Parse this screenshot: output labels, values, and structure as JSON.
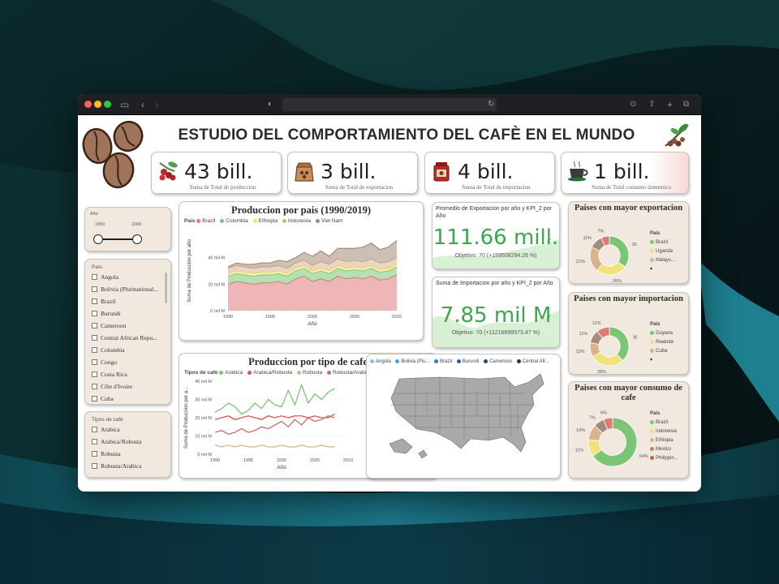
{
  "dashboard": {
    "title": "ESTUDIO DEL COMPORTAMIENTO DEL CAFÈ EN EL MUNDO"
  },
  "kpis": [
    {
      "value": "43 bill.",
      "label": "Suma de Total de produccion",
      "icon": "coffee-cherries-icon"
    },
    {
      "value": "3 bill.",
      "label": "Suma de Total de exportacion",
      "icon": "coffee-sack-icon"
    },
    {
      "value": "4 bill.",
      "label": "Suma de Total de importacion",
      "icon": "coffee-jar-icon"
    },
    {
      "value": "1 bill.",
      "label": "Suma de Total consumo domestico",
      "icon": "coffee-cup-icon"
    }
  ],
  "year_slicer": {
    "label": "Año",
    "from": "1990",
    "to": "2008"
  },
  "country_slicer": {
    "label": "País",
    "items": [
      "Angola",
      "Bolivia (Plurinational...",
      "Brazil",
      "Burundi",
      "Cameroon",
      "Central African Repu...",
      "Colombia",
      "Congo",
      "Costa Rica",
      "Côte d'Ivoire",
      "Cuba"
    ]
  },
  "type_slicer": {
    "label": "Tipos de cafe",
    "items": [
      "Arabica",
      "Arabica/Robusta",
      "Robusta",
      "Robusta/Arabica"
    ]
  },
  "colors": {
    "brazil": "#e07a7a",
    "colombia": "#7cc576",
    "ethiopia": "#f2e27a",
    "indonesia": "#d9b38c",
    "vietnam": "#a68a7a",
    "arabica": "#7cc576",
    "arabica_robusta": "#d9534f",
    "robusta": "#d9b38c",
    "robusta_arabica": "#c97070",
    "kpi_green": "#3aa84a"
  },
  "kpi_export": {
    "title": "Promedio de Exportacion por año y KPI_2 por Año",
    "value": "111.66 mill.",
    "goal": "Objetivo: 70 (+159508294.26 %)"
  },
  "kpi_import": {
    "title": "Suma de Importacion por año y KPI_2 por Año",
    "value": "7.85 mil M",
    "goal": "Objetivo: 70 (+11216699573.47 %)"
  },
  "map_legend": [
    "Angola",
    "Bolivia (Plu...",
    "Brazil",
    "Burundi",
    "Cameroon",
    "Central Afr..."
  ],
  "donuts": [
    {
      "title": "Paises con mayor exportacion",
      "legend_title": "País",
      "legend": [
        "Brazil",
        "Uganda",
        "Malays..."
      ],
      "labels": [
        "7%",
        "11%",
        "21%",
        "26%",
        "35%"
      ]
    },
    {
      "title": "Paises con mayor importacion",
      "legend_title": "País",
      "legend": [
        "Guyana",
        "Rwanda",
        "Cuba"
      ],
      "labels": [
        "11%",
        "11%",
        "12%",
        "28%",
        "38%"
      ]
    },
    {
      "title": "Paises con mayor consumo de cafe",
      "legend_title": "País",
      "legend": [
        "Brazil",
        "Indonesia",
        "Ethiopia",
        "Mexico",
        "Philippin..."
      ],
      "labels": [
        "6%",
        "7%",
        "10%",
        "11%",
        "64%"
      ]
    }
  ],
  "chart_data": [
    {
      "type": "area",
      "title": "Produccion por pais (1990/2019)",
      "legend_title": "País",
      "xlabel": "Año",
      "ylabel": "Suma de Produccion por año",
      "xlim": [
        1990,
        2010
      ],
      "ylim": [
        0,
        60
      ],
      "x_ticks": [
        "1990",
        "1995",
        "2000",
        "2005",
        "2010"
      ],
      "y_ticks": [
        "0 mil M",
        "20 mil M",
        "40 mil M"
      ],
      "x": [
        1990,
        1991,
        1992,
        1993,
        1994,
        1995,
        1996,
        1997,
        1998,
        1999,
        2000,
        2001,
        2002,
        2003,
        2004,
        2005,
        2006,
        2007,
        2008,
        2009,
        2010
      ],
      "series": [
        {
          "name": "Brazil",
          "values": [
            20,
            22,
            21,
            20,
            21,
            21,
            22,
            20,
            24,
            26,
            22,
            24,
            22,
            26,
            24,
            25,
            24,
            26,
            23,
            24,
            27
          ]
        },
        {
          "name": "Colombia",
          "values": [
            6,
            6,
            6,
            6,
            6,
            6,
            6,
            6,
            6,
            6,
            6,
            6,
            6,
            6,
            6,
            6,
            6,
            6,
            6,
            6,
            6
          ]
        },
        {
          "name": "Ethiopia",
          "values": [
            2,
            2,
            2,
            2,
            2,
            2,
            2,
            2,
            2,
            2,
            2,
            2,
            2,
            2,
            2,
            2,
            2,
            2,
            2,
            2,
            2
          ]
        },
        {
          "name": "Indonesia",
          "values": [
            4,
            4,
            4,
            4,
            4,
            4,
            4,
            4,
            4,
            4,
            4,
            5,
            5,
            5,
            5,
            5,
            5,
            5,
            5,
            5,
            5
          ]
        },
        {
          "name": "Viet Nam",
          "values": [
            1,
            2,
            2,
            3,
            3,
            3,
            4,
            5,
            4,
            6,
            7,
            8,
            6,
            8,
            10,
            9,
            11,
            12,
            10,
            11,
            13
          ]
        }
      ]
    },
    {
      "type": "line",
      "title": "Produccion por tipo de cafe",
      "legend_title": "Tipos de cafe",
      "xlabel": "Año",
      "ylabel": "Suma de Produccion por a...",
      "xlim": [
        1990,
        2010
      ],
      "ylim": [
        0,
        40
      ],
      "x_ticks": [
        "1990",
        "1995",
        "2000",
        "2005",
        "2010"
      ],
      "y_ticks": [
        "0 mil M",
        "10 mil M",
        "20 mil M",
        "30 mil M",
        "40 mil M"
      ],
      "x": [
        1990,
        1991,
        1992,
        1993,
        1994,
        1995,
        1996,
        1997,
        1998,
        1999,
        2000,
        2001,
        2002,
        2003,
        2004,
        2005,
        2006,
        2007,
        2008
      ],
      "series": [
        {
          "name": "Arabica",
          "values": [
            23,
            25,
            28,
            26,
            22,
            24,
            28,
            25,
            30,
            27,
            26,
            35,
            27,
            38,
            28,
            33,
            30,
            34,
            36
          ]
        },
        {
          "name": "Arabica/Robusta",
          "values": [
            19,
            20,
            21,
            19,
            20,
            21,
            20,
            19,
            21,
            20,
            21,
            20,
            21,
            21,
            20,
            21,
            20,
            20,
            22
          ]
        },
        {
          "name": "Robusta",
          "values": [
            5,
            4,
            5,
            4,
            5,
            4,
            4,
            5,
            4,
            4,
            5,
            4,
            4,
            5,
            4,
            4,
            5,
            4,
            4
          ]
        },
        {
          "name": "Robusta/Arabica",
          "values": [
            12,
            13,
            11,
            12,
            14,
            12,
            13,
            15,
            14,
            16,
            18,
            15,
            19,
            16,
            20,
            18,
            19,
            21,
            20
          ]
        }
      ]
    },
    {
      "type": "pie",
      "title": "Paises con mayor exportacion",
      "categories": [
        "Brazil",
        "Uganda",
        "Malays...",
        "",
        ""
      ],
      "values": [
        35,
        26,
        21,
        11,
        7
      ]
    },
    {
      "type": "pie",
      "title": "Paises con mayor importacion",
      "categories": [
        "Guyana",
        "Rwanda",
        "Cuba",
        "",
        ""
      ],
      "values": [
        38,
        28,
        12,
        11,
        11
      ]
    },
    {
      "type": "pie",
      "title": "Paises con mayor consumo de cafe",
      "categories": [
        "Brazil",
        "Indonesia",
        "Ethiopia",
        "Mexico",
        "Philippin..."
      ],
      "values": [
        64,
        11,
        10,
        7,
        6
      ]
    }
  ]
}
